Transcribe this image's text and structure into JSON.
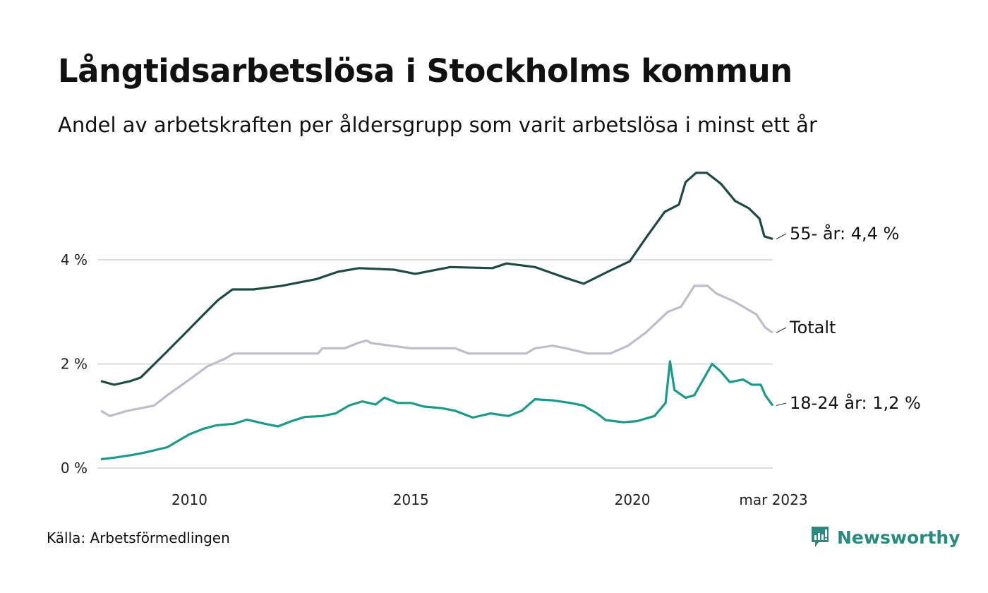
{
  "title": "Långtidsarbetslösa i Stockholms kommun",
  "subtitle": "Andel av arbetskraften per åldersgrupp som varit arbetslösa i minst ett år",
  "source": "Källa: Arbetsförmedlingen",
  "brand": "Newsworthy",
  "chart_data": {
    "type": "line",
    "title": "Långtidsarbetslösa i Stockholms kommun",
    "xlabel": "",
    "ylabel": "",
    "xlim": [
      2008.0,
      2023.17
    ],
    "ylim": [
      0,
      6
    ],
    "grid": true,
    "yticks": [
      {
        "v": 0,
        "label": "0 %"
      },
      {
        "v": 2,
        "label": "2 %"
      },
      {
        "v": 4,
        "label": "4 %"
      }
    ],
    "xticks": [
      {
        "v": 2010,
        "label": "2010"
      },
      {
        "v": 2015,
        "label": "2015"
      },
      {
        "v": 2020,
        "label": "2020"
      },
      {
        "v": 2023.17,
        "label": "mar 2023"
      }
    ],
    "series": [
      {
        "name": "55- år",
        "label": "55- år: 4,4 %",
        "color": "#1f4a44",
        "x": [
          2008.0,
          2008.3,
          2008.67,
          2008.9,
          2009.46,
          2009.94,
          2010.33,
          2010.65,
          2010.97,
          2011.44,
          2012.08,
          2012.87,
          2013.35,
          2013.83,
          2014.62,
          2015.1,
          2015.89,
          2016.84,
          2017.16,
          2017.8,
          2018.43,
          2018.9,
          2019.54,
          2019.94,
          2020.33,
          2020.73,
          2021.05,
          2021.2,
          2021.44,
          2021.68,
          2022.0,
          2022.32,
          2022.63,
          2022.87,
          2022.98,
          2023.17
        ],
        "y": [
          1.67,
          1.6,
          1.67,
          1.74,
          2.21,
          2.62,
          2.96,
          3.23,
          3.43,
          3.43,
          3.5,
          3.63,
          3.77,
          3.84,
          3.81,
          3.73,
          3.86,
          3.84,
          3.93,
          3.86,
          3.67,
          3.54,
          3.81,
          3.97,
          4.45,
          4.92,
          5.06,
          5.49,
          5.67,
          5.67,
          5.46,
          5.13,
          4.99,
          4.79,
          4.45,
          4.4
        ]
      },
      {
        "name": "Totalt",
        "label": "Totalt",
        "color": "#c0bccb",
        "x": [
          2008.0,
          2008.2,
          2008.6,
          2009.2,
          2009.5,
          2010.0,
          2010.4,
          2010.8,
          2011.0,
          2012.9,
          2013.0,
          2013.5,
          2013.8,
          2014.0,
          2014.1,
          2015.0,
          2016.0,
          2016.3,
          2017.6,
          2017.8,
          2018.2,
          2018.5,
          2019.0,
          2019.5,
          2019.9,
          2020.3,
          2020.8,
          2021.1,
          2021.4,
          2021.7,
          2021.9,
          2022.3,
          2022.5,
          2022.8,
          2023.0,
          2023.17
        ],
        "y": [
          1.1,
          1.0,
          1.1,
          1.2,
          1.4,
          1.7,
          1.95,
          2.1,
          2.2,
          2.2,
          2.3,
          2.3,
          2.4,
          2.45,
          2.4,
          2.3,
          2.3,
          2.2,
          2.2,
          2.3,
          2.35,
          2.3,
          2.2,
          2.2,
          2.35,
          2.6,
          3.0,
          3.1,
          3.5,
          3.5,
          3.35,
          3.2,
          3.1,
          2.95,
          2.7,
          2.6
        ]
      },
      {
        "name": "18-24 år",
        "label": "18-24 år: 1,2 %",
        "color": "#1a9b8a",
        "x": [
          2008.0,
          2008.3,
          2008.7,
          2009.0,
          2009.5,
          2010.0,
          2010.3,
          2010.6,
          2011.0,
          2011.3,
          2011.7,
          2012.0,
          2012.3,
          2012.6,
          2013.0,
          2013.3,
          2013.6,
          2013.9,
          2014.2,
          2014.4,
          2014.7,
          2015.0,
          2015.3,
          2015.7,
          2016.0,
          2016.4,
          2016.8,
          2017.2,
          2017.5,
          2017.8,
          2018.2,
          2018.6,
          2018.9,
          2019.2,
          2019.4,
          2019.8,
          2020.1,
          2020.5,
          2020.75,
          2020.85,
          2020.95,
          2021.2,
          2021.4,
          2021.6,
          2021.8,
          2022.0,
          2022.2,
          2022.5,
          2022.7,
          2022.9,
          2023.0,
          2023.17
        ],
        "y": [
          0.17,
          0.2,
          0.25,
          0.3,
          0.4,
          0.65,
          0.75,
          0.82,
          0.85,
          0.93,
          0.85,
          0.8,
          0.9,
          0.98,
          1.0,
          1.05,
          1.2,
          1.28,
          1.22,
          1.35,
          1.25,
          1.25,
          1.18,
          1.15,
          1.1,
          0.97,
          1.05,
          1.0,
          1.1,
          1.32,
          1.3,
          1.25,
          1.2,
          1.05,
          0.92,
          0.88,
          0.9,
          1.0,
          1.25,
          2.05,
          1.5,
          1.35,
          1.4,
          1.7,
          2.0,
          1.85,
          1.65,
          1.7,
          1.6,
          1.6,
          1.4,
          1.2
        ]
      }
    ]
  }
}
